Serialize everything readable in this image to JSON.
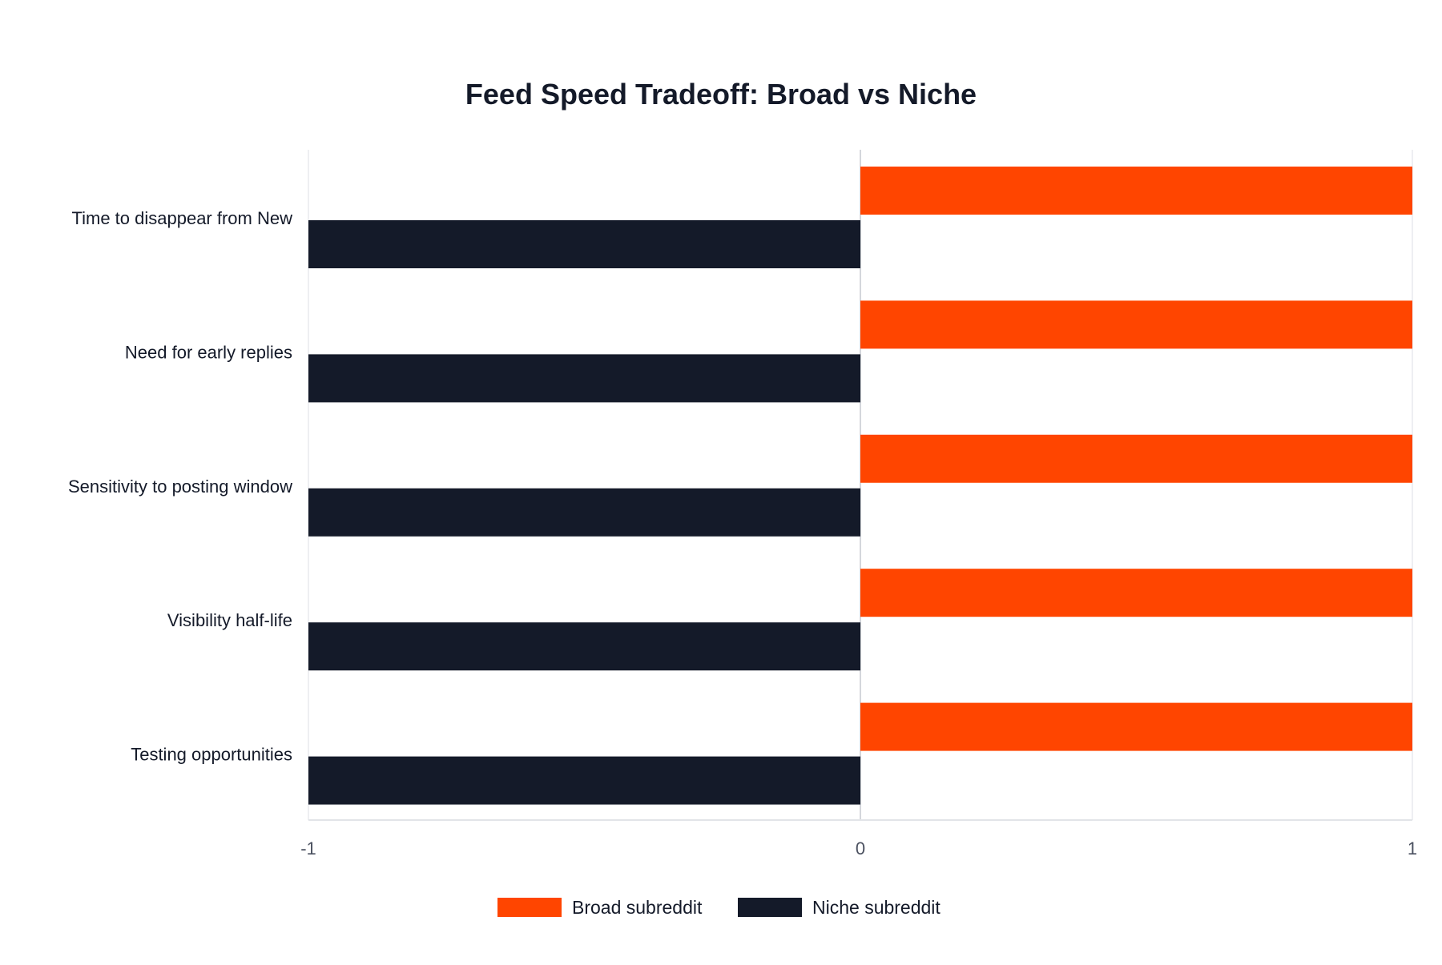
{
  "chart_data": {
    "type": "bar",
    "orientation": "horizontal",
    "title": "Feed Speed Tradeoff: Broad vs Niche",
    "categories": [
      "Time to disappear from New",
      "Need for early replies",
      "Sensitivity to posting window",
      "Visibility half-life",
      "Testing opportunities"
    ],
    "series": [
      {
        "name": "Broad subreddit",
        "color": "#ff4500",
        "values": [
          1,
          1,
          1,
          1,
          1
        ]
      },
      {
        "name": "Niche subreddit",
        "color": "#141a29",
        "values": [
          -1,
          -1,
          -1,
          -1,
          -1
        ]
      }
    ],
    "xlim": [
      -1,
      1
    ],
    "xticks": [
      "-1",
      "0",
      "1"
    ],
    "grid": true,
    "legend": "bottom"
  }
}
